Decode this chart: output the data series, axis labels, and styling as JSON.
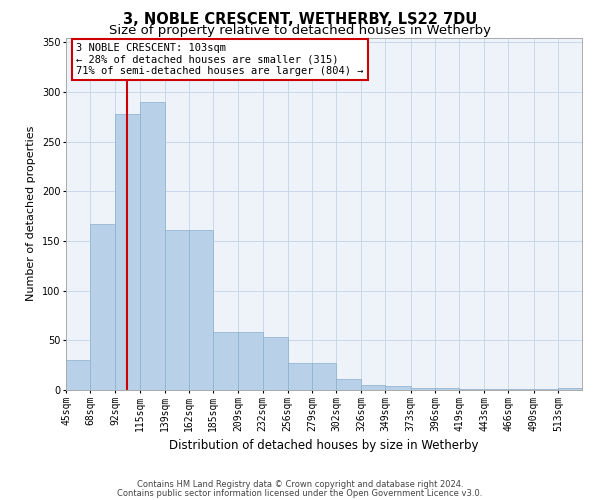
{
  "title": "3, NOBLE CRESCENT, WETHERBY, LS22 7DU",
  "subtitle": "Size of property relative to detached houses in Wetherby",
  "xlabel": "Distribution of detached houses by size in Wetherby",
  "ylabel": "Number of detached properties",
  "bar_labels": [
    "45sqm",
    "68sqm",
    "92sqm",
    "115sqm",
    "139sqm",
    "162sqm",
    "185sqm",
    "209sqm",
    "232sqm",
    "256sqm",
    "279sqm",
    "302sqm",
    "326sqm",
    "349sqm",
    "373sqm",
    "396sqm",
    "419sqm",
    "443sqm",
    "466sqm",
    "490sqm",
    "513sqm"
  ],
  "bar_values": [
    30,
    167,
    278,
    290,
    161,
    161,
    58,
    58,
    53,
    27,
    27,
    11,
    5,
    4,
    2,
    2,
    1,
    1,
    1,
    1,
    2
  ],
  "bin_edges": [
    45,
    68,
    92,
    115,
    139,
    162,
    185,
    209,
    232,
    256,
    279,
    302,
    326,
    349,
    373,
    396,
    419,
    443,
    466,
    490,
    513,
    536
  ],
  "bar_color": "#b8d0e8",
  "bar_edgecolor": "#8ab0cc",
  "property_line_x": 103,
  "annotation_title": "3 NOBLE CRESCENT: 103sqm",
  "annotation_line1": "← 28% of detached houses are smaller (315)",
  "annotation_line2": "71% of semi-detached houses are larger (804) →",
  "annotation_box_facecolor": "#ffffff",
  "annotation_box_edgecolor": "#cc0000",
  "vline_color": "#cc0000",
  "ylim": [
    0,
    355
  ],
  "yticks": [
    0,
    50,
    100,
    150,
    200,
    250,
    300,
    350
  ],
  "grid_color": "#c8d8ea",
  "background_color": "#eef3fa",
  "footer1": "Contains HM Land Registry data © Crown copyright and database right 2024.",
  "footer2": "Contains public sector information licensed under the Open Government Licence v3.0.",
  "title_fontsize": 10.5,
  "subtitle_fontsize": 9.5,
  "xlabel_fontsize": 8.5,
  "ylabel_fontsize": 8,
  "tick_fontsize": 7,
  "annotation_fontsize": 7.5,
  "footer_fontsize": 6
}
